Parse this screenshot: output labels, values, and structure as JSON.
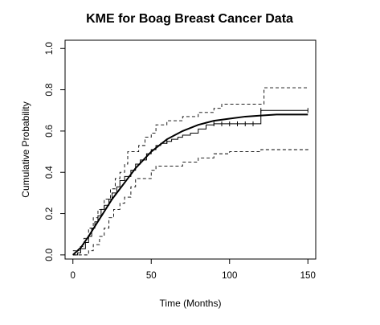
{
  "chart_data": {
    "type": "line",
    "title": "KME for Boag Breast Cancer Data",
    "xlabel": "Time (Months)",
    "ylabel": "Cumulative Probability",
    "xlim": [
      -5,
      155
    ],
    "ylim": [
      -0.02,
      1.04
    ],
    "x_ticks": [
      0,
      50,
      100,
      150
    ],
    "x_tick_labels": [
      "0",
      "50",
      "100",
      "150"
    ],
    "y_ticks": [
      0.0,
      0.2,
      0.4,
      0.6,
      0.8,
      1.0
    ],
    "y_tick_labels": [
      "0.0",
      "0.2",
      "0.4",
      "0.6",
      "0.8",
      "1.0"
    ],
    "grid": false,
    "legend": "none",
    "series": [
      {
        "style": "step-solid",
        "color": "#000000",
        "points": [
          [
            0,
            0
          ],
          [
            3,
            0.01
          ],
          [
            5,
            0.03
          ],
          [
            8,
            0.06
          ],
          [
            10,
            0.09
          ],
          [
            12,
            0.13
          ],
          [
            14,
            0.16
          ],
          [
            16,
            0.19
          ],
          [
            18,
            0.22
          ],
          [
            20,
            0.24
          ],
          [
            23,
            0.27
          ],
          [
            25,
            0.3
          ],
          [
            28,
            0.33
          ],
          [
            30,
            0.36
          ],
          [
            33,
            0.38
          ],
          [
            37,
            0.41
          ],
          [
            40,
            0.44
          ],
          [
            43,
            0.46
          ],
          [
            47,
            0.49
          ],
          [
            50,
            0.51
          ],
          [
            53,
            0.53
          ],
          [
            56,
            0.54
          ],
          [
            60,
            0.55
          ],
          [
            63,
            0.56
          ],
          [
            67,
            0.57
          ],
          [
            70,
            0.58
          ],
          [
            75,
            0.59
          ],
          [
            80,
            0.61
          ],
          [
            85,
            0.63
          ],
          [
            90,
            0.635
          ],
          [
            95,
            0.635
          ],
          [
            100,
            0.635
          ],
          [
            110,
            0.635
          ],
          [
            120,
            0.7
          ],
          [
            150,
            0.7
          ]
        ]
      },
      {
        "style": "step-dashed",
        "color": "#000000",
        "points": [
          [
            0,
            0.02
          ],
          [
            4,
            0.04
          ],
          [
            7,
            0.08
          ],
          [
            10,
            0.13
          ],
          [
            13,
            0.18
          ],
          [
            16,
            0.22
          ],
          [
            20,
            0.27
          ],
          [
            24,
            0.32
          ],
          [
            27,
            0.37
          ],
          [
            30,
            0.4
          ],
          [
            33,
            0.44
          ],
          [
            35,
            0.5
          ],
          [
            40,
            0.5
          ],
          [
            42,
            0.53
          ],
          [
            46,
            0.57
          ],
          [
            50,
            0.59
          ],
          [
            53,
            0.63
          ],
          [
            60,
            0.65
          ],
          [
            70,
            0.67
          ],
          [
            80,
            0.69
          ],
          [
            90,
            0.71
          ],
          [
            95,
            0.73
          ],
          [
            120,
            0.73
          ],
          [
            122,
            0.81
          ],
          [
            150,
            0.81
          ]
        ]
      },
      {
        "style": "step-dashed",
        "color": "#000000",
        "points": [
          [
            0,
            0
          ],
          [
            7,
            0
          ],
          [
            10,
            0.02
          ],
          [
            13,
            0.05
          ],
          [
            17,
            0.09
          ],
          [
            20,
            0.13
          ],
          [
            23,
            0.18
          ],
          [
            26,
            0.22
          ],
          [
            30,
            0.25
          ],
          [
            33,
            0.28
          ],
          [
            37,
            0.33
          ],
          [
            40,
            0.37
          ],
          [
            48,
            0.37
          ],
          [
            50,
            0.41
          ],
          [
            53,
            0.43
          ],
          [
            60,
            0.43
          ],
          [
            70,
            0.45
          ],
          [
            80,
            0.47
          ],
          [
            90,
            0.49
          ],
          [
            100,
            0.5
          ],
          [
            120,
            0.51
          ],
          [
            150,
            0.52
          ]
        ]
      },
      {
        "style": "smooth",
        "color": "#000000",
        "points": [
          [
            0,
            0
          ],
          [
            5,
            0.035
          ],
          [
            10,
            0.09
          ],
          [
            15,
            0.15
          ],
          [
            20,
            0.21
          ],
          [
            25,
            0.27
          ],
          [
            30,
            0.32
          ],
          [
            35,
            0.37
          ],
          [
            40,
            0.42
          ],
          [
            45,
            0.46
          ],
          [
            50,
            0.5
          ],
          [
            55,
            0.53
          ],
          [
            60,
            0.56
          ],
          [
            65,
            0.58
          ],
          [
            70,
            0.6
          ],
          [
            75,
            0.615
          ],
          [
            80,
            0.63
          ],
          [
            85,
            0.64
          ],
          [
            90,
            0.65
          ],
          [
            100,
            0.66
          ],
          [
            110,
            0.67
          ],
          [
            120,
            0.675
          ],
          [
            130,
            0.68
          ],
          [
            140,
            0.68
          ],
          [
            150,
            0.68
          ]
        ]
      },
      {
        "style": "censor-marks",
        "color": "#000000",
        "points": [
          [
            60,
            0.55
          ],
          [
            90,
            0.635
          ],
          [
            95,
            0.635
          ],
          [
            100,
            0.635
          ],
          [
            105,
            0.635
          ],
          [
            110,
            0.635
          ],
          [
            115,
            0.635
          ],
          [
            120,
            0.7
          ],
          [
            150,
            0.7
          ]
        ]
      }
    ]
  }
}
